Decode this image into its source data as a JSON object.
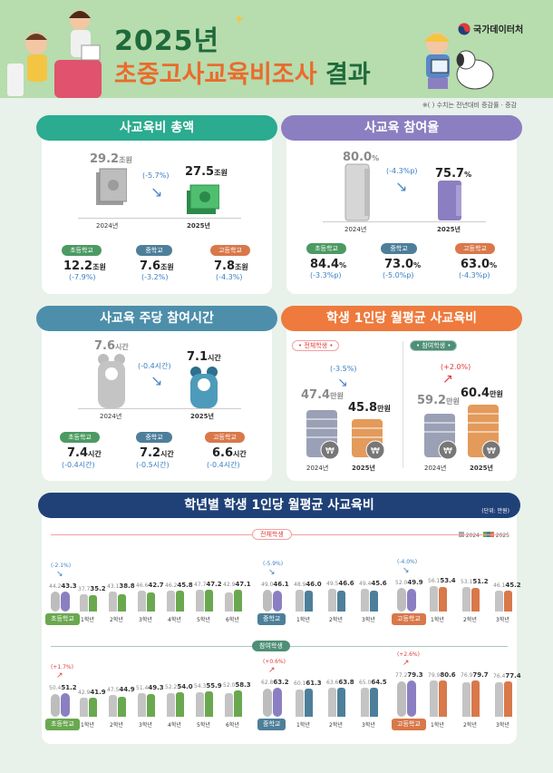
{
  "header": {
    "title_line1": "2025년",
    "title_line2": "초중고사교육비조사",
    "title_line2_suffix": "결과",
    "logo_text": "국가데이터처"
  },
  "note": "※(   ) 수치는 전년대비 증감률 · 증감",
  "total": {
    "heading": "사교육비 총액",
    "prev_value": "29.2",
    "prev_unit": "조원",
    "prev_year": "2024년",
    "change": "(-5.7%)",
    "curr_value": "27.5",
    "curr_unit": "조원",
    "curr_year": "2025년",
    "schools": [
      {
        "name": "초등학교",
        "value": "12.2",
        "unit": "조원",
        "change": "(-7.9%)"
      },
      {
        "name": "중학교",
        "value": "7.6",
        "unit": "조원",
        "change": "(-3.2%)"
      },
      {
        "name": "고등학교",
        "value": "7.8",
        "unit": "조원",
        "change": "(-4.3%)"
      }
    ]
  },
  "participation": {
    "heading": "사교육 참여율",
    "prev_value": "80.0",
    "prev_unit": "%",
    "prev_year": "2024년",
    "change": "(-4.3%p)",
    "curr_value": "75.7",
    "curr_unit": "%",
    "curr_year": "2025년",
    "schools": [
      {
        "name": "초등학교",
        "value": "84.4",
        "unit": "%",
        "change": "(-3.3%p)"
      },
      {
        "name": "중학교",
        "value": "73.0",
        "unit": "%",
        "change": "(-5.0%p)"
      },
      {
        "name": "고등학교",
        "value": "63.0",
        "unit": "%",
        "change": "(-4.3%p)"
      }
    ]
  },
  "hours": {
    "heading": "사교육 주당 참여시간",
    "prev_value": "7.6",
    "prev_unit": "시간",
    "prev_year": "2024년",
    "change": "(-0.4시간)",
    "curr_value": "7.1",
    "curr_unit": "시간",
    "curr_year": "2025년",
    "schools": [
      {
        "name": "초등학교",
        "value": "7.4",
        "unit": "시간",
        "change": "(-0.4시간)"
      },
      {
        "name": "중학교",
        "value": "7.2",
        "unit": "시간",
        "change": "(-0.5시간)"
      },
      {
        "name": "고등학교",
        "value": "6.6",
        "unit": "시간",
        "change": "(-0.4시간)"
      }
    ]
  },
  "monthly": {
    "heading": "학생 1인당 월평균 사교육비",
    "all": {
      "label": "전체학생",
      "change": "(-3.5%)",
      "prev_value": "47.4",
      "prev_unit": "만원",
      "curr_value": "45.8",
      "curr_unit": "만원",
      "prev_year": "2024년",
      "curr_year": "2025년"
    },
    "participants": {
      "label": "참여학생",
      "change": "(+2.0%)",
      "prev_value": "59.2",
      "prev_unit": "만원",
      "curr_value": "60.4",
      "curr_unit": "만원",
      "prev_year": "2024년",
      "curr_year": "2025년"
    }
  },
  "grade_section": {
    "heading": "학년별 학생 1인당 월평균 사교육비",
    "unit_note": "(단위: 만원)",
    "legend": [
      "2024",
      "2025"
    ],
    "rows": [
      {
        "label": "전체학생"
      },
      {
        "label": "참여학생"
      }
    ]
  },
  "chart_data": [
    {
      "type": "bar",
      "title": "전체학생 초등학교",
      "categories": [
        "초등학교",
        "1학년",
        "2학년",
        "3학년",
        "4학년",
        "5학년",
        "6학년"
      ],
      "series": [
        {
          "name": "2024",
          "values": [
            44.2,
            37.7,
            43.1,
            46.6,
            46.2,
            47.7,
            42.9
          ]
        },
        {
          "name": "2025",
          "values": [
            43.3,
            35.2,
            38.8,
            42.7,
            45.8,
            47.2,
            47.1
          ]
        }
      ],
      "annotation": "(-2.1%)"
    },
    {
      "type": "bar",
      "title": "전체학생 중학교",
      "categories": [
        "중학교",
        "1학년",
        "2학년",
        "3학년"
      ],
      "series": [
        {
          "name": "2024",
          "values": [
            49.0,
            48.9,
            49.5,
            49.4
          ]
        },
        {
          "name": "2025",
          "values": [
            46.1,
            46.0,
            46.6,
            45.6
          ]
        }
      ],
      "annotation": "(-5.9%)"
    },
    {
      "type": "bar",
      "title": "전체학생 고등학교",
      "categories": [
        "고등학교",
        "1학년",
        "2학년",
        "3학년"
      ],
      "series": [
        {
          "name": "2024",
          "values": [
            52.0,
            56.1,
            53.1,
            46.1
          ]
        },
        {
          "name": "2025",
          "values": [
            49.9,
            53.4,
            51.2,
            45.2
          ]
        }
      ],
      "annotation": "(-4.0%)"
    },
    {
      "type": "bar",
      "title": "참여학생 초등학교",
      "categories": [
        "초등학교",
        "1학년",
        "2학년",
        "3학년",
        "4학년",
        "5학년",
        "6학년"
      ],
      "series": [
        {
          "name": "2024",
          "values": [
            50.4,
            42.9,
            47.5,
            51.4,
            52.2,
            54.3,
            52.0
          ]
        },
        {
          "name": "2025",
          "values": [
            51.2,
            41.9,
            44.9,
            49.3,
            54.0,
            55.9,
            58.3
          ]
        }
      ],
      "annotation": "(+1.7%)"
    },
    {
      "type": "bar",
      "title": "참여학생 중학교",
      "categories": [
        "중학교",
        "1학년",
        "2학년",
        "3학년"
      ],
      "series": [
        {
          "name": "2024",
          "values": [
            62.8,
            60.1,
            63.6,
            65.0
          ]
        },
        {
          "name": "2025",
          "values": [
            63.2,
            61.3,
            63.8,
            64.5
          ]
        }
      ],
      "annotation": "(+0.6%)"
    },
    {
      "type": "bar",
      "title": "참여학생 고등학교",
      "categories": [
        "고등학교",
        "1학년",
        "2학년",
        "3학년"
      ],
      "series": [
        {
          "name": "2024",
          "values": [
            77.2,
            79.9,
            76.9,
            76.4
          ]
        },
        {
          "name": "2025",
          "values": [
            79.3,
            80.6,
            79.7,
            77.4
          ]
        }
      ],
      "annotation": "(+2.6%)"
    }
  ],
  "colors": {
    "green": "#2bab8f",
    "purple": "#8c7fc1",
    "steel": "#4d8fab",
    "orange": "#ee7a3d",
    "navy": "#1f4178",
    "elem": "#6aa84f",
    "mid": "#4d7f9a",
    "high": "#d9784a"
  }
}
